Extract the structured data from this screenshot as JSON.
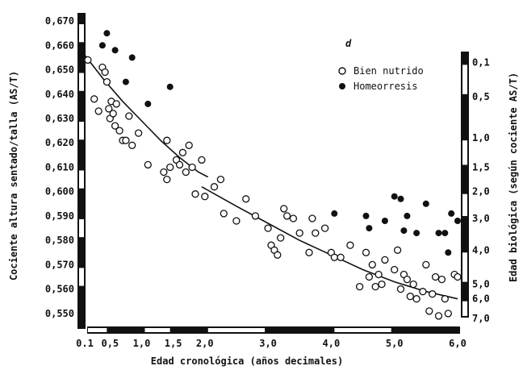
{
  "chart_data": {
    "type": "scatter",
    "panel_letter": "d",
    "xlabel": "Edad cronológica (años decimales)",
    "ylabel": "Cociente altura sentado/talla (AS/T)",
    "y2label": "Edad biológica (según cociente AS/T)",
    "xlim": [
      0.1,
      6.0
    ],
    "ylim": [
      0.545,
      0.672
    ],
    "x_ticks": [
      "0.1",
      "0,5",
      "1,0",
      "1,5",
      "2,0",
      "3,0",
      "4,0",
      "5,0",
      "6,0"
    ],
    "x_tick_values": [
      0.1,
      0.5,
      1.0,
      1.5,
      2.0,
      3.0,
      4.0,
      5.0,
      6.0
    ],
    "y_ticks": [
      "0,670",
      "0,660",
      "0,650",
      "0,640",
      "0,630",
      "0,620",
      "0,610",
      "0,600",
      "0,590",
      "0,580",
      "0,570",
      "0,560",
      "0,550"
    ],
    "y_tick_values": [
      0.67,
      0.66,
      0.65,
      0.64,
      0.63,
      0.62,
      0.61,
      0.6,
      0.59,
      0.58,
      0.57,
      0.56,
      0.55
    ],
    "y2_ticks": [
      "0,1",
      "0,5",
      "1,0",
      "1,5",
      "2,0",
      "3,0",
      "4,0",
      "5,0",
      "6,0",
      "7,0"
    ],
    "y2_tick_values": [
      0.653,
      0.639,
      0.622,
      0.61,
      0.6,
      0.589,
      0.576,
      0.562,
      0.556,
      0.548
    ],
    "legend_position": "top-right",
    "series": [
      {
        "name": "Bien nutrido",
        "marker": "open-circle",
        "points": [
          [
            0.15,
            0.654
          ],
          [
            0.25,
            0.638
          ],
          [
            0.32,
            0.633
          ],
          [
            0.38,
            0.651
          ],
          [
            0.42,
            0.649
          ],
          [
            0.45,
            0.645
          ],
          [
            0.48,
            0.634
          ],
          [
            0.5,
            0.63
          ],
          [
            0.52,
            0.637
          ],
          [
            0.55,
            0.632
          ],
          [
            0.58,
            0.627
          ],
          [
            0.6,
            0.636
          ],
          [
            0.65,
            0.625
          ],
          [
            0.7,
            0.621
          ],
          [
            0.75,
            0.621
          ],
          [
            0.8,
            0.631
          ],
          [
            0.85,
            0.619
          ],
          [
            0.95,
            0.624
          ],
          [
            1.1,
            0.611
          ],
          [
            1.35,
            0.608
          ],
          [
            1.4,
            0.605
          ],
          [
            1.4,
            0.621
          ],
          [
            1.45,
            0.61
          ],
          [
            1.55,
            0.613
          ],
          [
            1.6,
            0.611
          ],
          [
            1.65,
            0.616
          ],
          [
            1.7,
            0.608
          ],
          [
            1.75,
            0.619
          ],
          [
            1.8,
            0.61
          ],
          [
            1.85,
            0.599
          ],
          [
            1.95,
            0.613
          ],
          [
            2.0,
            0.598
          ],
          [
            2.15,
            0.602
          ],
          [
            2.25,
            0.605
          ],
          [
            2.3,
            0.591
          ],
          [
            2.5,
            0.588
          ],
          [
            2.65,
            0.597
          ],
          [
            2.8,
            0.59
          ],
          [
            3.0,
            0.585
          ],
          [
            3.05,
            0.578
          ],
          [
            3.1,
            0.576
          ],
          [
            3.15,
            0.574
          ],
          [
            3.2,
            0.581
          ],
          [
            3.25,
            0.593
          ],
          [
            3.3,
            0.59
          ],
          [
            3.4,
            0.589
          ],
          [
            3.5,
            0.583
          ],
          [
            3.65,
            0.575
          ],
          [
            3.7,
            0.589
          ],
          [
            3.75,
            0.583
          ],
          [
            3.9,
            0.585
          ],
          [
            4.0,
            0.575
          ],
          [
            4.05,
            0.573
          ],
          [
            4.15,
            0.573
          ],
          [
            4.3,
            0.578
          ],
          [
            4.45,
            0.561
          ],
          [
            4.55,
            0.575
          ],
          [
            4.6,
            0.565
          ],
          [
            4.65,
            0.57
          ],
          [
            4.7,
            0.561
          ],
          [
            4.75,
            0.566
          ],
          [
            4.8,
            0.562
          ],
          [
            4.85,
            0.572
          ],
          [
            5.0,
            0.568
          ],
          [
            5.05,
            0.576
          ],
          [
            5.1,
            0.56
          ],
          [
            5.15,
            0.566
          ],
          [
            5.2,
            0.564
          ],
          [
            5.25,
            0.557
          ],
          [
            5.3,
            0.562
          ],
          [
            5.35,
            0.556
          ],
          [
            5.45,
            0.559
          ],
          [
            5.5,
            0.57
          ],
          [
            5.55,
            0.551
          ],
          [
            5.6,
            0.558
          ],
          [
            5.65,
            0.565
          ],
          [
            5.7,
            0.549
          ],
          [
            5.75,
            0.564
          ],
          [
            5.8,
            0.556
          ],
          [
            5.85,
            0.55
          ],
          [
            5.95,
            0.566
          ],
          [
            6.0,
            0.565
          ]
        ]
      },
      {
        "name": "Homeorresis",
        "marker": "filled-circle",
        "points": [
          [
            0.38,
            0.66
          ],
          [
            0.45,
            0.665
          ],
          [
            0.58,
            0.658
          ],
          [
            0.75,
            0.645
          ],
          [
            0.85,
            0.655
          ],
          [
            1.1,
            0.636
          ],
          [
            1.45,
            0.643
          ],
          [
            4.05,
            0.591
          ],
          [
            4.55,
            0.59
          ],
          [
            4.6,
            0.585
          ],
          [
            4.85,
            0.588
          ],
          [
            5.0,
            0.598
          ],
          [
            5.1,
            0.597
          ],
          [
            5.15,
            0.584
          ],
          [
            5.2,
            0.59
          ],
          [
            5.35,
            0.583
          ],
          [
            5.5,
            0.595
          ],
          [
            5.7,
            0.583
          ],
          [
            5.8,
            0.583
          ],
          [
            5.85,
            0.575
          ],
          [
            5.9,
            0.591
          ],
          [
            6.0,
            0.588
          ]
        ]
      }
    ],
    "trend_curves": [
      {
        "x": [
          0.1,
          0.4,
          0.7,
          1.0,
          1.3,
          1.6,
          1.9,
          2.05
        ],
        "y": [
          0.656,
          0.646,
          0.637,
          0.629,
          0.621,
          0.614,
          0.608,
          0.606
        ]
      },
      {
        "x": [
          1.95,
          2.5,
          3.0,
          3.5,
          4.0,
          4.5,
          5.0,
          5.5,
          6.0
        ],
        "y": [
          0.602,
          0.594,
          0.587,
          0.58,
          0.574,
          0.568,
          0.563,
          0.559,
          0.556
        ]
      }
    ]
  }
}
